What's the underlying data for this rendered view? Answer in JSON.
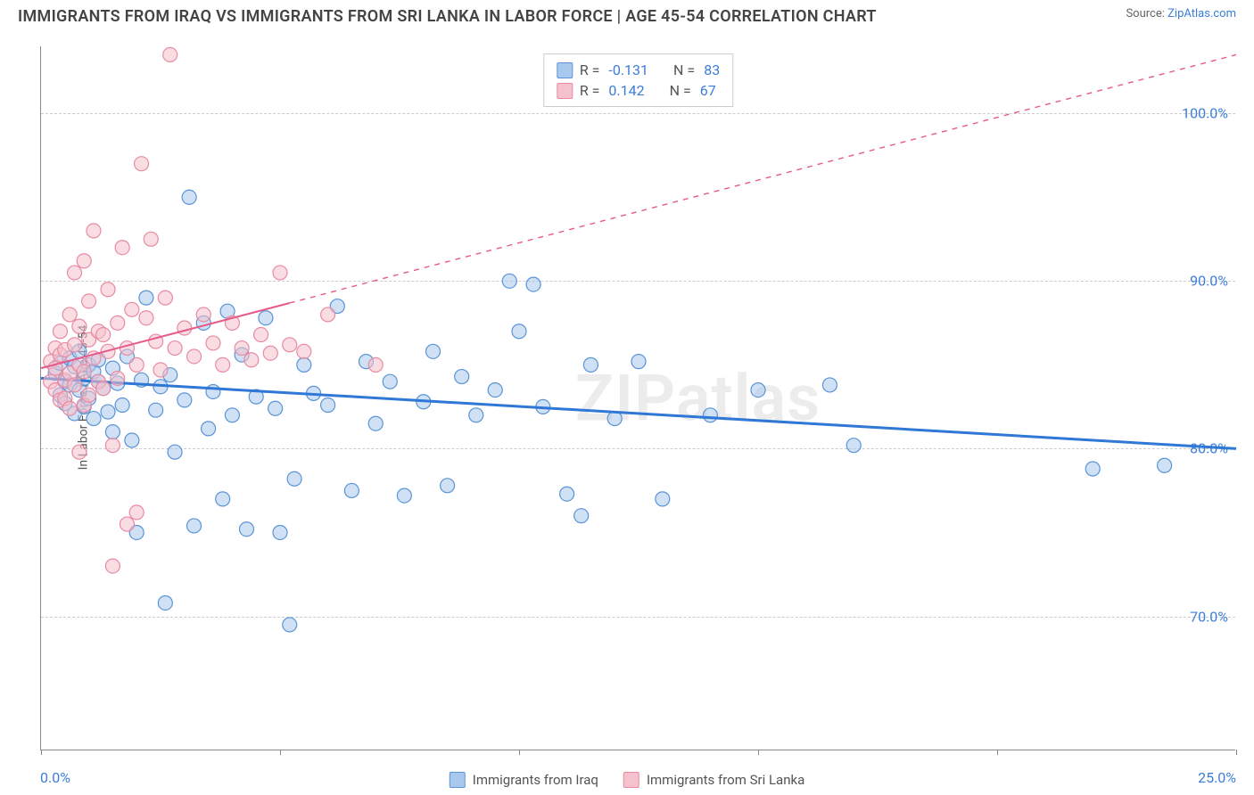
{
  "title": "IMMIGRANTS FROM IRAQ VS IMMIGRANTS FROM SRI LANKA IN LABOR FORCE | AGE 45-54 CORRELATION CHART",
  "source_label": "Source:",
  "source_name": "ZipAtlas.com",
  "watermark": "ZIPatlas",
  "y_axis_title": "In Labor Force | Age 45-54",
  "chart": {
    "type": "scatter",
    "xlim": [
      0,
      25
    ],
    "ylim": [
      62,
      104
    ],
    "x_ticks": [
      0,
      5,
      10,
      15,
      20,
      25
    ],
    "x_tick_labels": [
      "0.0%",
      "",
      "",
      "",
      "",
      "25.0%"
    ],
    "y_gridlines": [
      70,
      80,
      90,
      100
    ],
    "y_tick_labels": [
      "70.0%",
      "80.0%",
      "90.0%",
      "100.0%"
    ],
    "grid_color": "#cccccc",
    "background_color": "#ffffff",
    "axis_color": "#888888",
    "tick_label_color": "#3b7dd8",
    "marker_radius": 8,
    "marker_opacity": 0.55,
    "marker_stroke_width": 1.2
  },
  "series": [
    {
      "name": "Immigrants from Iraq",
      "color_fill": "#a9c8ed",
      "color_stroke": "#5a94d6",
      "r_label": "R =",
      "r_value": "-0.131",
      "n_label": "N =",
      "n_value": "83",
      "trend": {
        "x1": 0,
        "y1": 84.2,
        "x2": 25,
        "y2": 80.0,
        "solid_until_x": 25,
        "color": "#2f78d6",
        "width": 3
      },
      "points": [
        [
          0.3,
          84.5
        ],
        [
          0.4,
          83.2
        ],
        [
          0.4,
          85.1
        ],
        [
          0.5,
          84.0
        ],
        [
          0.5,
          82.7
        ],
        [
          0.6,
          85.4
        ],
        [
          0.6,
          83.8
        ],
        [
          0.7,
          82.1
        ],
        [
          0.7,
          84.9
        ],
        [
          0.8,
          85.8
        ],
        [
          0.8,
          83.5
        ],
        [
          0.9,
          84.2
        ],
        [
          0.9,
          82.5
        ],
        [
          1.0,
          85.0
        ],
        [
          1.0,
          83.0
        ],
        [
          1.1,
          84.6
        ],
        [
          1.1,
          81.8
        ],
        [
          1.2,
          84.0
        ],
        [
          1.2,
          85.3
        ],
        [
          1.3,
          83.6
        ],
        [
          1.4,
          82.2
        ],
        [
          1.5,
          84.8
        ],
        [
          1.5,
          81.0
        ],
        [
          1.6,
          83.9
        ],
        [
          1.7,
          82.6
        ],
        [
          1.8,
          85.5
        ],
        [
          1.9,
          80.5
        ],
        [
          2.0,
          75.0
        ],
        [
          2.1,
          84.1
        ],
        [
          2.2,
          89.0
        ],
        [
          2.4,
          82.3
        ],
        [
          2.5,
          83.7
        ],
        [
          2.6,
          70.8
        ],
        [
          2.7,
          84.4
        ],
        [
          2.8,
          79.8
        ],
        [
          3.0,
          82.9
        ],
        [
          3.1,
          95.0
        ],
        [
          3.2,
          75.4
        ],
        [
          3.4,
          87.5
        ],
        [
          3.5,
          81.2
        ],
        [
          3.6,
          83.4
        ],
        [
          3.8,
          77.0
        ],
        [
          3.9,
          88.2
        ],
        [
          4.0,
          82.0
        ],
        [
          4.2,
          85.6
        ],
        [
          4.3,
          75.2
        ],
        [
          4.5,
          83.1
        ],
        [
          4.7,
          87.8
        ],
        [
          4.9,
          82.4
        ],
        [
          5.0,
          75.0
        ],
        [
          5.2,
          69.5
        ],
        [
          5.3,
          78.2
        ],
        [
          5.5,
          85.0
        ],
        [
          5.7,
          83.3
        ],
        [
          6.0,
          82.6
        ],
        [
          6.2,
          88.5
        ],
        [
          6.5,
          77.5
        ],
        [
          6.8,
          85.2
        ],
        [
          7.0,
          81.5
        ],
        [
          7.3,
          84.0
        ],
        [
          7.6,
          77.2
        ],
        [
          8.0,
          82.8
        ],
        [
          8.2,
          85.8
        ],
        [
          8.5,
          77.8
        ],
        [
          8.8,
          84.3
        ],
        [
          9.1,
          82.0
        ],
        [
          9.5,
          83.5
        ],
        [
          9.8,
          90.0
        ],
        [
          10.0,
          87.0
        ],
        [
          10.3,
          89.8
        ],
        [
          10.5,
          82.5
        ],
        [
          11.0,
          77.3
        ],
        [
          11.3,
          76.0
        ],
        [
          11.5,
          85.0
        ],
        [
          12.0,
          81.8
        ],
        [
          12.5,
          85.2
        ],
        [
          13.0,
          77.0
        ],
        [
          14.0,
          82.0
        ],
        [
          15.0,
          83.5
        ],
        [
          16.5,
          83.8
        ],
        [
          17.0,
          80.2
        ],
        [
          22.0,
          78.8
        ],
        [
          23.5,
          79.0
        ]
      ]
    },
    {
      "name": "Immigrants from Sri Lanka",
      "color_fill": "#f4c1cc",
      "color_stroke": "#e98aa2",
      "r_label": "R =",
      "r_value": "0.142",
      "n_label": "N =",
      "n_value": "67",
      "trend": {
        "x1": 0,
        "y1": 84.8,
        "x2": 25,
        "y2": 103.5,
        "solid_until_x": 5.2,
        "color": "#e65a8a",
        "width": 2
      },
      "points": [
        [
          0.2,
          84.0
        ],
        [
          0.2,
          85.2
        ],
        [
          0.3,
          83.5
        ],
        [
          0.3,
          86.0
        ],
        [
          0.3,
          84.8
        ],
        [
          0.4,
          82.9
        ],
        [
          0.4,
          85.6
        ],
        [
          0.4,
          87.0
        ],
        [
          0.5,
          84.1
        ],
        [
          0.5,
          83.0
        ],
        [
          0.5,
          85.9
        ],
        [
          0.6,
          88.0
        ],
        [
          0.6,
          84.5
        ],
        [
          0.6,
          82.4
        ],
        [
          0.7,
          86.2
        ],
        [
          0.7,
          90.5
        ],
        [
          0.7,
          83.8
        ],
        [
          0.8,
          85.0
        ],
        [
          0.8,
          87.3
        ],
        [
          0.8,
          79.8
        ],
        [
          0.9,
          84.6
        ],
        [
          0.9,
          91.2
        ],
        [
          0.9,
          82.6
        ],
        [
          1.0,
          86.5
        ],
        [
          1.0,
          88.8
        ],
        [
          1.0,
          83.2
        ],
        [
          1.1,
          85.4
        ],
        [
          1.1,
          93.0
        ],
        [
          1.2,
          87.0
        ],
        [
          1.2,
          84.0
        ],
        [
          1.3,
          86.8
        ],
        [
          1.3,
          83.6
        ],
        [
          1.4,
          89.5
        ],
        [
          1.4,
          85.8
        ],
        [
          1.5,
          73.0
        ],
        [
          1.5,
          80.2
        ],
        [
          1.6,
          87.5
        ],
        [
          1.6,
          84.2
        ],
        [
          1.7,
          92.0
        ],
        [
          1.8,
          86.0
        ],
        [
          1.8,
          75.5
        ],
        [
          1.9,
          88.3
        ],
        [
          2.0,
          76.2
        ],
        [
          2.0,
          85.0
        ],
        [
          2.1,
          97.0
        ],
        [
          2.2,
          87.8
        ],
        [
          2.3,
          92.5
        ],
        [
          2.4,
          86.4
        ],
        [
          2.5,
          84.7
        ],
        [
          2.6,
          89.0
        ],
        [
          2.7,
          103.5
        ],
        [
          2.8,
          86.0
        ],
        [
          3.0,
          87.2
        ],
        [
          3.2,
          85.5
        ],
        [
          3.4,
          88.0
        ],
        [
          3.6,
          86.3
        ],
        [
          3.8,
          85.0
        ],
        [
          4.0,
          87.5
        ],
        [
          4.2,
          86.0
        ],
        [
          4.4,
          85.3
        ],
        [
          4.6,
          86.8
        ],
        [
          4.8,
          85.7
        ],
        [
          5.0,
          90.5
        ],
        [
          5.2,
          86.2
        ],
        [
          5.5,
          85.8
        ],
        [
          6.0,
          88.0
        ],
        [
          7.0,
          85.0
        ]
      ]
    }
  ],
  "legend_bottom": [
    {
      "label": "Immigrants from Iraq"
    },
    {
      "label": "Immigrants from Sri Lanka"
    }
  ]
}
